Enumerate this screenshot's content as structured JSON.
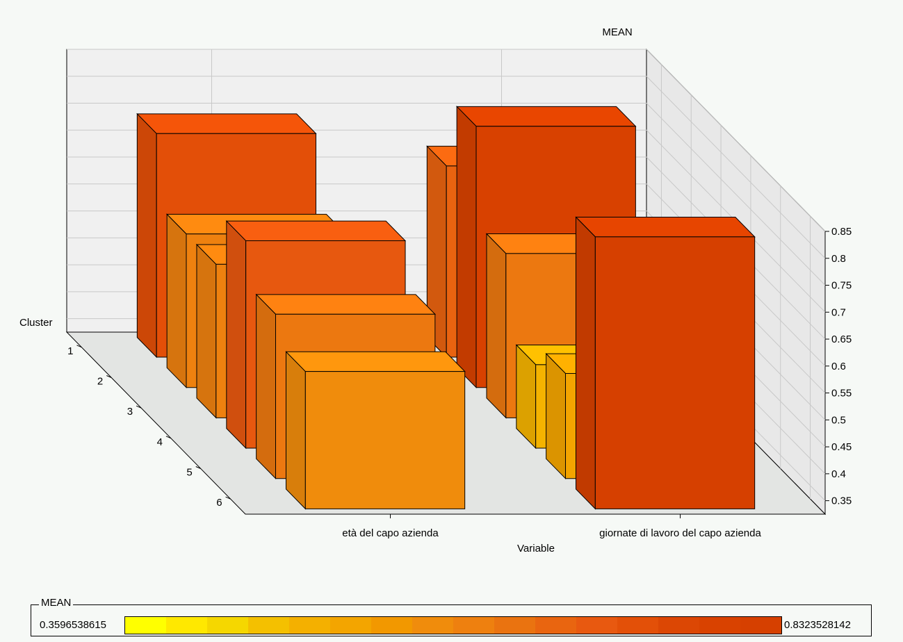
{
  "chart_data": {
    "type": "bar",
    "variant": "3d-bar",
    "title": "MEAN",
    "xlabel": "Variable",
    "ylabel": "Cluster",
    "zlabel": "MEAN",
    "variables": [
      "età del capo azienda",
      "giornate di lavoro del capo azienda"
    ],
    "clusters": [
      "1",
      "2",
      "3",
      "4",
      "5",
      "6"
    ],
    "z_ticks": [
      "0.35",
      "0.4",
      "0.45",
      "0.5",
      "0.55",
      "0.6",
      "0.65",
      "0.7",
      "0.75",
      "0.8",
      "0.85"
    ],
    "zlim": [
      0.325,
      0.85
    ],
    "series": [
      {
        "variable": "età del capo azienda",
        "values": [
          0.74,
          0.61,
          0.61,
          0.71,
          0.63,
          0.58
        ]
      },
      {
        "variable": "giornate di lavoro del capo azienda",
        "values": [
          0.68,
          0.81,
          0.63,
          0.48,
          0.52,
          0.83
        ]
      }
    ],
    "color_scale": {
      "title": "MEAN",
      "min": 0.3596538615,
      "max": 0.8323528142,
      "min_label": "0.3596538615",
      "max_label": "0.8323528142",
      "colors": [
        "#ffff00",
        "#ffe800",
        "#f5d700",
        "#f4c000",
        "#f4b000",
        "#f3a500",
        "#f29800",
        "#f08c0c",
        "#ee800f",
        "#ea7310",
        "#e96510",
        "#e85910",
        "#e35008",
        "#dc4704",
        "#d94200",
        "#d64000"
      ]
    },
    "grid": true
  }
}
